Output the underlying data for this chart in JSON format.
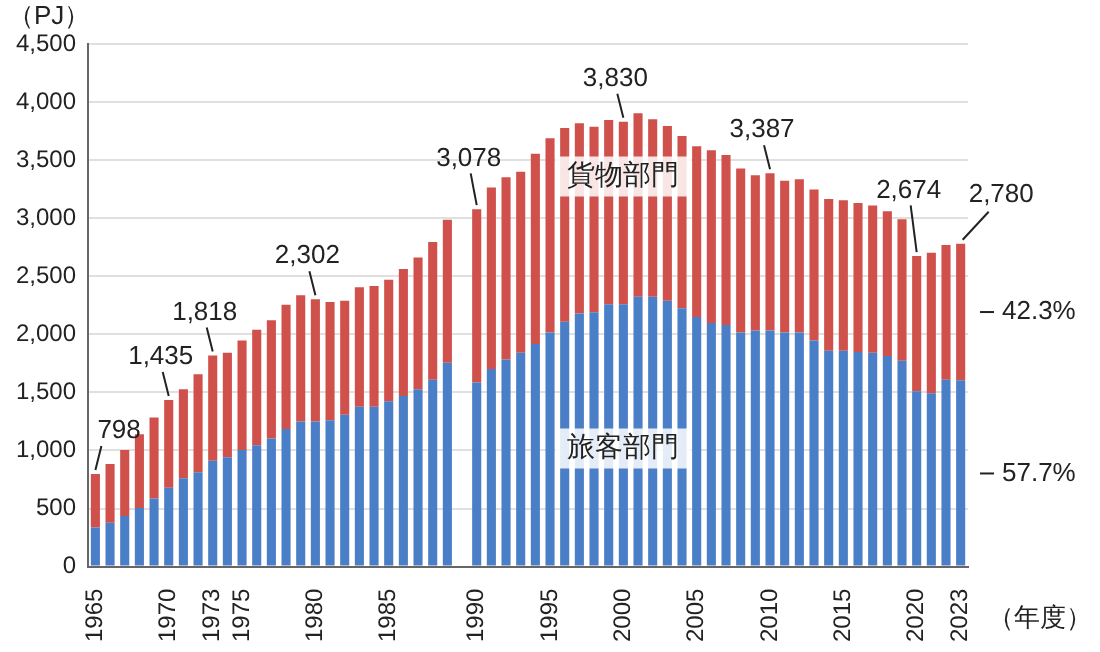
{
  "chart_data": {
    "type": "bar",
    "stacked": true,
    "ylabel": "（PJ）",
    "xlabel": "（年度）",
    "ylim": [
      0,
      4500
    ],
    "yticks": [
      {
        "value": 0,
        "label": "0"
      },
      {
        "value": 500,
        "label": "500"
      },
      {
        "value": 1000,
        "label": "1,000"
      },
      {
        "value": 1500,
        "label": "1,500"
      },
      {
        "value": 2000,
        "label": "2,000"
      },
      {
        "value": 2500,
        "label": "2,500"
      },
      {
        "value": 3000,
        "label": "3,000"
      },
      {
        "value": 3500,
        "label": "3,500"
      },
      {
        "value": 4000,
        "label": "4,000"
      },
      {
        "value": 4500,
        "label": "4,500"
      }
    ],
    "grid": "y",
    "legend": false,
    "categories": [
      "1965",
      null,
      null,
      null,
      null,
      "1970",
      null,
      null,
      "1973",
      null,
      "1975",
      null,
      null,
      null,
      null,
      "1980",
      null,
      null,
      null,
      null,
      "1985",
      null,
      null,
      null,
      null,
      null,
      "1990",
      null,
      null,
      null,
      null,
      "1995",
      null,
      null,
      null,
      null,
      "2000",
      null,
      null,
      null,
      null,
      "2005",
      null,
      null,
      null,
      null,
      "2010",
      null,
      null,
      null,
      null,
      "2015",
      null,
      null,
      null,
      null,
      "2020",
      null,
      null,
      "2023"
    ],
    "series": [
      {
        "name": "旅客部門",
        "color": "#4a7ec6",
        "values": [
          337,
          378,
          436,
          505,
          587,
          680,
          761,
          813,
          912,
          941,
          1005,
          1046,
          1104,
          1185,
          1249,
          1249,
          1261,
          1307,
          1377,
          1377,
          1423,
          1470,
          1528,
          1609,
          1755,
          null,
          1586,
          1702,
          1784,
          1842,
          1917,
          2016,
          2109,
          2179,
          2190,
          2260,
          2260,
          2324,
          2324,
          2289,
          2225,
          2150,
          2097,
          2080,
          2016,
          2034,
          2034,
          2016,
          2016,
          1946,
          1859,
          1859,
          1848,
          1842,
          1813,
          1772,
          1511,
          1493,
          1609,
          1604
        ]
      },
      {
        "name": "貨物部門",
        "color": "#d0504c",
        "values": [
          461,
          505,
          569,
          634,
          697,
          755,
          767,
          843,
          906,
          901,
          941,
          993,
          1017,
          1069,
          1087,
          1053,
          1017,
          982,
          1028,
          1040,
          1046,
          1092,
          1133,
          1186,
          1231,
          null,
          1492,
          1563,
          1568,
          1557,
          1639,
          1673,
          1668,
          1638,
          1598,
          1586,
          1570,
          1580,
          1528,
          1505,
          1482,
          1470,
          1488,
          1464,
          1412,
          1336,
          1353,
          1307,
          1319,
          1302,
          1307,
          1296,
          1282,
          1268,
          1247,
          1218,
          1163,
          1209,
          1161,
          1176
        ]
      }
    ],
    "annotations": [
      {
        "text": "798",
        "x": "1965",
        "y": 798
      },
      {
        "text": "1,435",
        "x": "1970",
        "y": 1435
      },
      {
        "text": "1,818",
        "x": "1973",
        "y": 1818
      },
      {
        "text": "2,302",
        "x": "1980",
        "y": 2302
      },
      {
        "text": "3,078",
        "x": "1990",
        "y": 3078
      },
      {
        "text": "3,830",
        "x": "2000",
        "y": 3830
      },
      {
        "text": "3,387",
        "x": "2010",
        "y": 3387
      },
      {
        "text": "2,674",
        "x": "2020",
        "y": 2674
      },
      {
        "text": "2,780",
        "x": "2023",
        "y": 2780
      },
      {
        "text": "42.3%",
        "x": "2023",
        "y": 2192
      },
      {
        "text": "57.7%",
        "x": "2023",
        "y": 802
      }
    ]
  }
}
